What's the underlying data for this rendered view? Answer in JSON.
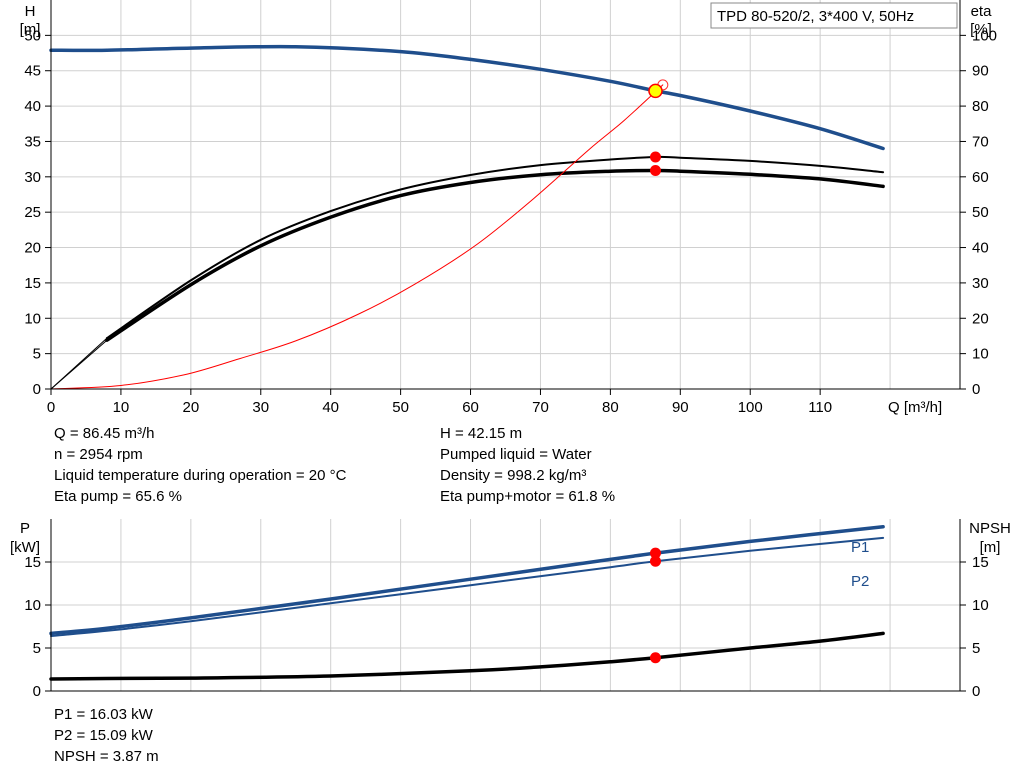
{
  "top_chart": {
    "y_left_label": [
      "H",
      "[m]"
    ],
    "y_right_label": [
      "eta",
      "[%]"
    ],
    "x_label": "Q [m³/h]",
    "legend_box": "TPD 80-520/2, 3*400 V, 50Hz"
  },
  "info_top": {
    "left": [
      "Q = 86.45 m³/h",
      "n = 2954 rpm",
      "Liquid temperature during operation = 20 °C",
      "Eta pump = 65.6 %"
    ],
    "right": [
      "H = 42.15 m",
      "Pumped liquid = Water",
      "Density = 998.2 kg/m³",
      "Eta pump+motor = 61.8 %"
    ]
  },
  "bottom_chart": {
    "y_left_label": [
      "P",
      "[kW]"
    ],
    "y_right_label": [
      "NPSH",
      "[m]"
    ],
    "series_labels": [
      "P1",
      "P2"
    ]
  },
  "info_bottom": [
    "P1 = 16.03 kW",
    "P2 = 15.09 kW",
    "NPSH = 3.87 m"
  ],
  "colors": {
    "head": "#1f4e8c",
    "eta": "#000000",
    "system": "#ff0000",
    "power": "#1f4e8c",
    "npsh": "#000000",
    "grid": "#d0d0d0"
  },
  "chart_data": [
    {
      "type": "line",
      "x_ticks": [
        0,
        10,
        20,
        30,
        40,
        50,
        60,
        70,
        80,
        90,
        100,
        110
      ],
      "xlim": [
        0,
        130
      ],
      "y_left_ticks": [
        0,
        5,
        10,
        15,
        20,
        25,
        30,
        35,
        40,
        45,
        50
      ],
      "ylim_left": [
        0,
        55
      ],
      "y_right_ticks": [
        0,
        10,
        20,
        30,
        40,
        50,
        60,
        70,
        80,
        90,
        100
      ],
      "ylim_right": [
        0,
        110
      ],
      "series": [
        {
          "key": "head",
          "axis": "left",
          "x": [
            0,
            8,
            20,
            35,
            50,
            60,
            70,
            80,
            86.45,
            90,
            100,
            110,
            119
          ],
          "y": [
            47.9,
            47.9,
            48.2,
            48.4,
            47.7,
            46.6,
            45.2,
            43.5,
            42.15,
            41.5,
            39.3,
            36.8,
            34.0
          ]
        },
        {
          "key": "eta_pump",
          "axis": "right",
          "x": [
            8,
            20,
            30,
            40,
            50,
            60,
            70,
            80,
            86.45,
            90,
            100,
            110,
            119
          ],
          "y": [
            14.4,
            30.7,
            42.2,
            50.3,
            56.4,
            60.5,
            63.3,
            64.9,
            65.6,
            65.4,
            64.5,
            63.1,
            61.3
          ]
        },
        {
          "key": "eta_total",
          "axis": "right",
          "x": [
            8,
            20,
            30,
            40,
            50,
            60,
            70,
            80,
            86.45,
            90,
            100,
            110,
            119
          ],
          "y": [
            13.8,
            29.5,
            40.5,
            48.6,
            54.7,
            58.4,
            60.6,
            61.6,
            61.8,
            61.6,
            60.7,
            59.4,
            57.3
          ]
        },
        {
          "key": "system",
          "axis": "left",
          "x": [
            0,
            10,
            19,
            27,
            35,
            44,
            52,
            61,
            69,
            77,
            82,
            87.5
          ],
          "y": [
            0,
            0.5,
            2.0,
            4.3,
            6.8,
            10.6,
            14.8,
            20.5,
            26.9,
            33.9,
            38.0,
            43.0
          ]
        }
      ],
      "operating_point": {
        "q": 86.45,
        "h": 42.15,
        "eta_pump": 65.6,
        "eta_total": 61.8
      }
    },
    {
      "type": "line",
      "x_ticks": [
        0,
        10,
        20,
        30,
        40,
        50,
        60,
        70,
        80,
        90,
        100,
        110
      ],
      "xlim": [
        0,
        130
      ],
      "y_left_ticks": [
        0,
        5,
        10,
        15
      ],
      "ylim_left": [
        0,
        20
      ],
      "y_right_ticks": [
        0,
        5,
        10,
        15
      ],
      "ylim_right": [
        0,
        20
      ],
      "series": [
        {
          "key": "P1",
          "axis": "left",
          "x": [
            0,
            8,
            20,
            40,
            60,
            80,
            86.45,
            100,
            119
          ],
          "y": [
            6.7,
            7.3,
            8.5,
            10.7,
            13.0,
            15.3,
            16.03,
            17.4,
            19.1
          ]
        },
        {
          "key": "P2",
          "axis": "left",
          "x": [
            0,
            8,
            20,
            40,
            60,
            80,
            86.45,
            100,
            119
          ],
          "y": [
            6.4,
            7.0,
            8.1,
            10.2,
            12.3,
            14.4,
            15.09,
            16.3,
            17.8
          ]
        },
        {
          "key": "NPSH",
          "axis": "right",
          "x": [
            0,
            8,
            20,
            40,
            60,
            70,
            80,
            86.45,
            100,
            110,
            119
          ],
          "y": [
            1.4,
            1.45,
            1.5,
            1.75,
            2.35,
            2.8,
            3.4,
            3.87,
            5.0,
            5.8,
            6.7
          ]
        }
      ],
      "operating_point": {
        "q": 86.45,
        "p1": 16.03,
        "p2": 15.09,
        "npsh": 3.87
      }
    }
  ]
}
